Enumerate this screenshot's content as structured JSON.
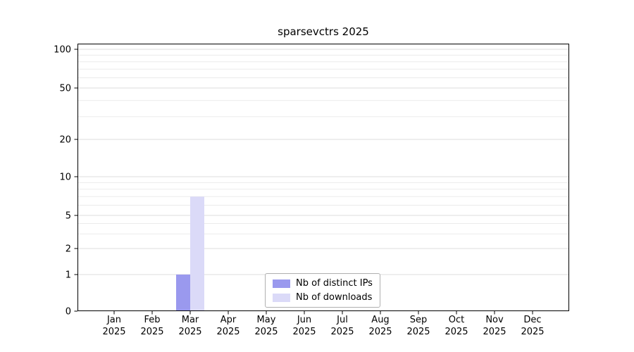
{
  "title": "sparsevctrs 2025",
  "chart_data": {
    "type": "bar",
    "title": "sparsevctrs 2025",
    "categories": [
      "Jan",
      "Feb",
      "Mar",
      "Apr",
      "May",
      "Jun",
      "Jul",
      "Aug",
      "Sep",
      "Oct",
      "Nov",
      "Dec"
    ],
    "year": "2025",
    "series": [
      {
        "name": "Nb of distinct IPs",
        "color": "#9a99ee",
        "values": [
          0,
          0,
          1,
          0,
          0,
          0,
          0,
          0,
          0,
          0,
          0,
          0
        ]
      },
      {
        "name": "Nb of downloads",
        "color": "#dbdaf8",
        "values": [
          0,
          0,
          7,
          0,
          0,
          0,
          0,
          0,
          0,
          0,
          0,
          0
        ]
      }
    ],
    "yscale": "symlog",
    "yticks": [
      0,
      1,
      2,
      5,
      10,
      20,
      50,
      100
    ],
    "grid_values": [
      1,
      2,
      3,
      4,
      5,
      6,
      7,
      8,
      9,
      10,
      20,
      30,
      40,
      50,
      60,
      70,
      80,
      90,
      100
    ],
    "ylim": [
      0,
      100
    ],
    "legend_position": "lower center",
    "grid": "horizontal"
  },
  "colors": {
    "grid_minor": "#ebebeb",
    "grid_major": "#dddddd",
    "axis": "#000000",
    "tick_text": "#000000",
    "legend_border": "#b0b0b0"
  }
}
